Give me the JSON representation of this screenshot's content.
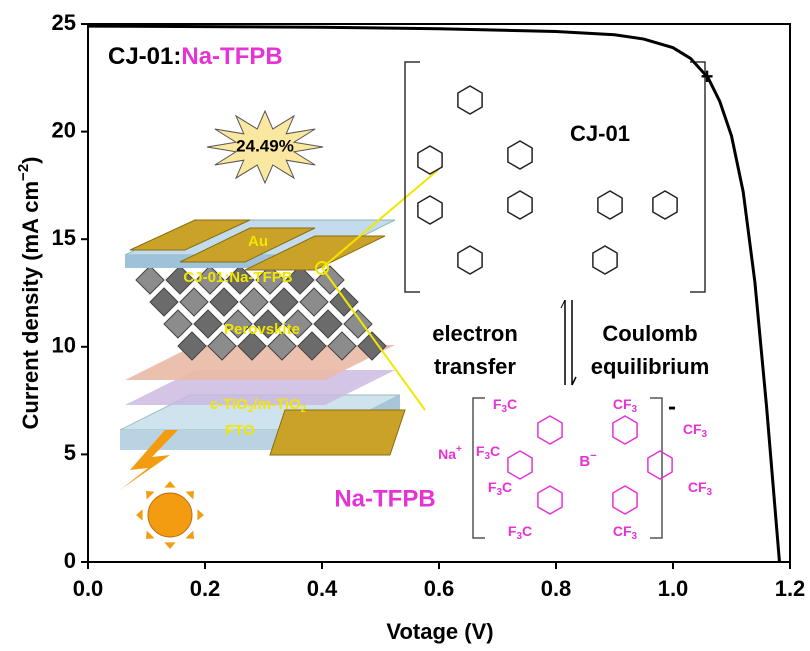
{
  "chart_data": {
    "type": "line",
    "title": [
      "CJ-01:",
      "Na-TFPB"
    ],
    "xlabel": "Votage (V)",
    "ylabel": [
      "Current density (mA cm",
      "−2",
      ")"
    ],
    "x": [
      0,
      0.2,
      0.4,
      0.6,
      0.8,
      0.9,
      0.95,
      1.0,
      1.03,
      1.06,
      1.08,
      1.1,
      1.12,
      1.14,
      1.16,
      1.182
    ],
    "values": [
      24.9,
      24.88,
      24.85,
      24.78,
      24.65,
      24.5,
      24.3,
      23.9,
      23.4,
      22.5,
      21.4,
      19.8,
      17.2,
      13.0,
      7.2,
      0
    ],
    "color": "#000000",
    "xlim": [
      0,
      1.2
    ],
    "ylim": [
      0,
      25
    ],
    "xticks": [
      {
        "value": 0,
        "label": "0.0"
      },
      0.2,
      0.4,
      0.6,
      0.8,
      {
        "value": 1,
        "label": "1.0"
      },
      1.2
    ],
    "yticks": [
      0,
      5,
      10,
      15,
      20,
      25
    ],
    "annotations": {
      "efficiency": "24.49%",
      "au": "Au",
      "htm": "CJ-01:Na-TFPB",
      "perovskite": "Perovskite",
      "etl": [
        "c-TiO",
        "2",
        "/m-TiO",
        "2"
      ],
      "fto": "FTO",
      "dopant": "Na-TFPB",
      "molecule": "CJ-01",
      "charge_plus": "+",
      "charge_minus": "-",
      "left_process": [
        "electron",
        "transfer"
      ],
      "right_process": [
        "Coulomb",
        "equilibrium"
      ],
      "sodium": [
        "Na",
        "+"
      ],
      "boron": [
        "B",
        "−"
      ],
      "cf3_groups": [
        [
          "F",
          "3",
          "C"
        ],
        [
          "CF",
          "3",
          ""
        ],
        [
          "F",
          "3",
          "C"
        ],
        [
          "CF",
          "3",
          ""
        ],
        [
          "CF",
          "3",
          ""
        ],
        [
          "F",
          "3",
          "C"
        ],
        [
          "F",
          "3",
          "C"
        ],
        [
          "CF",
          "3",
          ""
        ]
      ]
    }
  }
}
